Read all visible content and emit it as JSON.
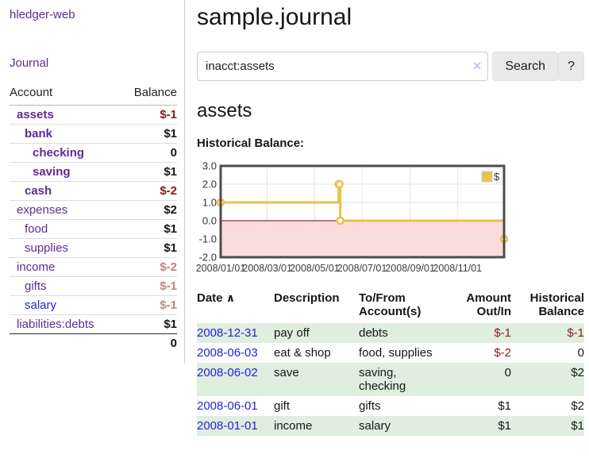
{
  "brand": "hledger-web",
  "colors": {
    "link_purple": "#5c2d91",
    "link_blue": "#2424d8",
    "negative_strong": "#8b1a1a",
    "negative_soft": "#c08484",
    "register_negative": "#8b2222",
    "row_highlight_green": "#dfeedf",
    "series_gold": "#e9c249"
  },
  "sidebar": {
    "journal_link": "Journal",
    "accounts": {
      "header": {
        "account": "Account",
        "balance": "Balance"
      },
      "rows": [
        {
          "name": "assets",
          "balance": "$-1"
        },
        {
          "name": "bank",
          "balance": "$1"
        },
        {
          "name": "checking",
          "balance": "0"
        },
        {
          "name": "saving",
          "balance": "$1"
        },
        {
          "name": "cash",
          "balance": "$-2"
        },
        {
          "name": "expenses",
          "balance": "$2"
        },
        {
          "name": "food",
          "balance": "$1"
        },
        {
          "name": "supplies",
          "balance": "$1"
        },
        {
          "name": "income",
          "balance": "$-2"
        },
        {
          "name": "gifts",
          "balance": "$-1"
        },
        {
          "name": "salary",
          "balance": "$-1"
        },
        {
          "name": "liabilities:debts",
          "balance": "$1"
        }
      ],
      "total": "0"
    }
  },
  "main": {
    "title": "sample.journal",
    "search": {
      "value": "inacct:assets",
      "clear_label": "×",
      "search_button": "Search",
      "help_button": "?"
    },
    "account_heading": "assets",
    "section_label": "Historical Balance:"
  },
  "chart_data": {
    "type": "line",
    "title": "Historical Balance of assets",
    "step": true,
    "x_range": [
      "2008-01-01",
      "2008-12-31"
    ],
    "ylim": [
      -2,
      3
    ],
    "y_ticks": [
      "3.0",
      "2.0",
      "1.0",
      "0.0",
      "-1.0",
      "-2.0"
    ],
    "x_ticks": [
      {
        "date": "2008-01-01",
        "label": "2008/01/01"
      },
      {
        "date": "2008-03-01",
        "label": "2008/03/01"
      },
      {
        "date": "2008-05-01",
        "label": "2008/05/01"
      },
      {
        "date": "2008-07-01",
        "label": "2008/07/01"
      },
      {
        "date": "2008-09-01",
        "label": "2008/09/01"
      },
      {
        "date": "2008-11-01",
        "label": "2008/11/01"
      }
    ],
    "series": [
      {
        "name": "$",
        "color": "#e9c249",
        "points": [
          {
            "date": "2008-01-01",
            "value": 1
          },
          {
            "date": "2008-06-01",
            "value": 2
          },
          {
            "date": "2008-06-02",
            "value": 2
          },
          {
            "date": "2008-06-03",
            "value": 0
          },
          {
            "date": "2008-12-31",
            "value": -1
          }
        ]
      }
    ],
    "legend_position": "top-right",
    "grid": true,
    "grid_color": "#e4e4e4",
    "border_color": "#4d4d4d",
    "zero_line_color": "#8b0000",
    "below_zero_fill": "#fbdcdc"
  },
  "register": {
    "headers": {
      "date": "Date",
      "sort_indicator": "∧",
      "description": "Description",
      "accounts": "To/From\nAccount(s)",
      "amount": "Amount\nOut/In",
      "balance": "Historical\nBalance"
    },
    "rows": [
      {
        "date": "2008-12-31",
        "description": "pay off",
        "accounts": "debts",
        "amount": "$-1",
        "balance": "$-1"
      },
      {
        "date": "2008-06-03",
        "description": "eat & shop",
        "accounts": "food, supplies",
        "amount": "$-2",
        "balance": "0"
      },
      {
        "date": "2008-06-02",
        "description": "save",
        "accounts": "saving,\nchecking",
        "amount": "0",
        "balance": "$2"
      },
      {
        "date": "2008-06-01",
        "description": "gift",
        "accounts": "gifts",
        "amount": "$1",
        "balance": "$2"
      },
      {
        "date": "2008-01-01",
        "description": "income",
        "accounts": "salary",
        "amount": "$1",
        "balance": "$1"
      }
    ]
  }
}
